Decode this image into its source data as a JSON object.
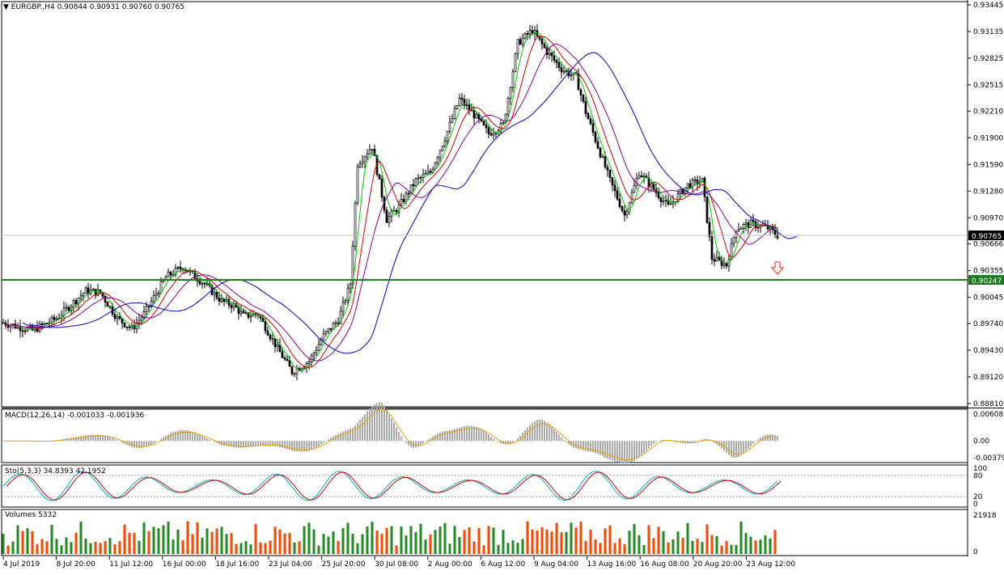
{
  "header": {
    "symbol": "EURGBP.,H4",
    "open": "0.90844",
    "high": "0.90931",
    "low": "0.90760",
    "close": "0.90765"
  },
  "price_axis": {
    "ticks": [
      "0.93445",
      "0.93135",
      "0.92825",
      "0.92515",
      "0.92210",
      "0.91900",
      "0.91590",
      "0.91280",
      "0.90970",
      "0.90666",
      "0.90355",
      "0.90045",
      "0.89740",
      "0.89430",
      "0.89120",
      "0.88810"
    ],
    "current_price": "0.90765",
    "line_price": "0.90247"
  },
  "indicators": {
    "macd": {
      "label": "MACD(12,26,14) -0.001033 -0.001936",
      "ticks": [
        "0.006082",
        "0.00",
        "-0.003797"
      ]
    },
    "stochastic": {
      "label": "Sto(5,3,3) 34.8393 42.1952",
      "ticks": [
        "100",
        "80",
        "20",
        "0"
      ]
    },
    "volumes": {
      "label": "Volumes 5332",
      "ticks": [
        "21918",
        "0"
      ]
    }
  },
  "time_axis": [
    "4 Jul 2019",
    "8 Jul 20:00",
    "11 Jul 12:00",
    "16 Jul 00:00",
    "18 Jul 16:00",
    "23 Jul 04:00",
    "25 Jul 20:00",
    "30 Jul 08:00",
    "2 Aug 00:00",
    "6 Aug 12:00",
    "9 Aug 04:00",
    "13 Aug 16:00",
    "16 Aug 08:00",
    "20 Aug 20:00",
    "23 Aug 12:00"
  ],
  "colors": {
    "bull_candle": "#ffffff",
    "bear_candle": "#000000",
    "horizontal_level": "#1a7a1a",
    "ma_fast": "#00c800",
    "ma_mid": "#d00000",
    "ma_slow": "#0000c0",
    "ma_long": "#8b008b",
    "macd_hist": "#a9a9a9",
    "macd_signal": "#e8a000",
    "sto_main": "#00b0c8",
    "sto_signal": "#d00000",
    "vol_up": "#1e8c1e",
    "vol_down": "#ff4500",
    "arrow": "#ff2020"
  },
  "chart_data": {
    "type": "candlestick",
    "timeframe": "H4",
    "title": "EURGBP.,H4",
    "key_level": 0.90247,
    "close_path": [
      [
        0,
        0.8975
      ],
      [
        12,
        0.8966
      ],
      [
        22,
        0.898
      ],
      [
        34,
        0.9012
      ],
      [
        40,
        0.901
      ],
      [
        47,
        0.898
      ],
      [
        53,
        0.8968
      ],
      [
        58,
        0.8985
      ],
      [
        67,
        0.9028
      ],
      [
        74,
        0.904
      ],
      [
        83,
        0.902
      ],
      [
        90,
        0.9
      ],
      [
        95,
        0.8995
      ],
      [
        99,
        0.8983
      ],
      [
        105,
        0.8985
      ],
      [
        113,
        0.8945
      ],
      [
        119,
        0.8918
      ],
      [
        126,
        0.893
      ],
      [
        132,
        0.896
      ],
      [
        138,
        0.8978
      ],
      [
        143,
        0.902
      ],
      [
        146,
        0.916
      ],
      [
        152,
        0.918
      ],
      [
        158,
        0.9095
      ],
      [
        163,
        0.911
      ],
      [
        170,
        0.914
      ],
      [
        176,
        0.915
      ],
      [
        182,
        0.919
      ],
      [
        188,
        0.9235
      ],
      [
        193,
        0.922
      ],
      [
        200,
        0.9195
      ],
      [
        206,
        0.9205
      ],
      [
        212,
        0.93
      ],
      [
        218,
        0.9315
      ],
      [
        224,
        0.929
      ],
      [
        230,
        0.927
      ],
      [
        236,
        0.926
      ],
      [
        240,
        0.922
      ],
      [
        245,
        0.918
      ],
      [
        250,
        0.914
      ],
      [
        256,
        0.91
      ],
      [
        262,
        0.915
      ],
      [
        268,
        0.913
      ],
      [
        274,
        0.911
      ],
      [
        282,
        0.9135
      ],
      [
        288,
        0.914
      ],
      [
        292,
        0.905
      ],
      [
        298,
        0.9042
      ],
      [
        302,
        0.9085
      ],
      [
        308,
        0.909
      ],
      [
        315,
        0.9085
      ],
      [
        319,
        0.90765
      ]
    ],
    "macd_last": [
      -0.001033,
      -0.001936
    ],
    "stochastic_last": [
      34.8393,
      42.1952
    ],
    "volume_last": 5332
  }
}
